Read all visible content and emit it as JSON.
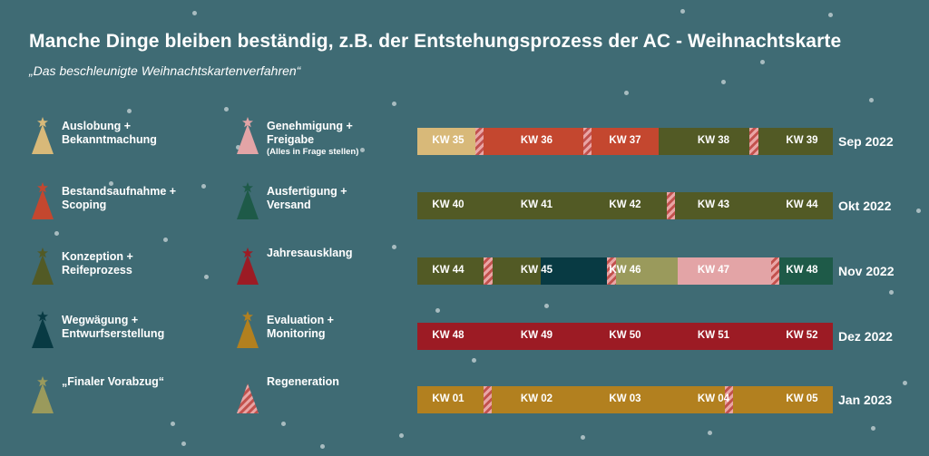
{
  "title": "Manche Dinge bleiben beständig, z.B. der Entstehungsprozess der AC - Weihnachtskarte",
  "subtitle": "„Das beschleunigte Weihnachtskartenverfahren“",
  "colors": {
    "background": "#3f6b74",
    "auslobung": "#d8b979",
    "bestandsaufnahme": "#c4472f",
    "konzeption": "#525a25",
    "wegwaegung": "#083a43",
    "finaler_vorabzug": "#9a9a5c",
    "genehmigung": "#e3a4a6",
    "ausfertigung": "#1e5a48",
    "jahresausklang": "#9c1b24",
    "evaluation": "#b2801f",
    "regeneration": "stripe"
  },
  "legend": [
    {
      "id": "auslobung",
      "icon": "tree-icon",
      "line1": "Auslobung +",
      "line2": "Bekanntmachung",
      "sub": ""
    },
    {
      "id": "bestandsaufnahme",
      "icon": "tree-icon",
      "line1": "Bestandsaufnahme +",
      "line2": "Scoping",
      "sub": ""
    },
    {
      "id": "konzeption",
      "icon": "tree-icon",
      "line1": "Konzeption +",
      "line2": "Reifeprozess",
      "sub": ""
    },
    {
      "id": "wegwaegung",
      "icon": "tree-icon",
      "line1": "Wegwägung +",
      "line2": "Entwurfserstellung",
      "sub": ""
    },
    {
      "id": "finaler_vorabzug",
      "icon": "tree-icon",
      "line1": "„Finaler Vorabzug“",
      "line2": "",
      "sub": ""
    },
    {
      "id": "genehmigung",
      "icon": "tree-icon",
      "line1": "Genehmigung +",
      "line2": "Freigabe",
      "sub": "(Alles in Frage stellen)"
    },
    {
      "id": "ausfertigung",
      "icon": "tree-icon",
      "line1": "Ausfertigung +",
      "line2": "Versand",
      "sub": ""
    },
    {
      "id": "jahresausklang",
      "icon": "tree-icon",
      "line1": "Jahresausklang",
      "line2": "",
      "sub": ""
    },
    {
      "id": "evaluation",
      "icon": "tree-icon",
      "line1": "Evaluation +",
      "line2": "Monitoring",
      "sub": ""
    },
    {
      "id": "regeneration",
      "icon": "striped-tree-icon",
      "line1": "Regeneration",
      "line2": "",
      "sub": ""
    }
  ],
  "timeline": [
    {
      "month": "Sep 2022",
      "weeks": [
        "KW 35",
        "KW 36",
        "KW 37",
        "KW 38",
        "KW 39"
      ],
      "segments": [
        {
          "phase": "auslobung",
          "span": 0.7
        },
        {
          "phase": "regeneration",
          "span": 0.1
        },
        {
          "phase": "bestandsaufnahme",
          "span": 1.2
        },
        {
          "phase": "regeneration",
          "span": 0.1
        },
        {
          "phase": "bestandsaufnahme",
          "span": 0.8
        },
        {
          "phase": "konzeption",
          "span": 1.1
        },
        {
          "phase": "regeneration",
          "span": 0.1
        },
        {
          "phase": "konzeption",
          "span": 0.9
        }
      ]
    },
    {
      "month": "Okt 2022",
      "weeks": [
        "KW 40",
        "KW 41",
        "KW 42",
        "KW 43",
        "KW 44"
      ],
      "segments": [
        {
          "phase": "konzeption",
          "span": 3.0
        },
        {
          "phase": "regeneration",
          "span": 0.1
        },
        {
          "phase": "konzeption",
          "span": 1.9
        }
      ]
    },
    {
      "month": "Nov 2022",
      "weeks": [
        "KW 44",
        "KW 45",
        "KW 46",
        "KW 47",
        "KW 48"
      ],
      "segments": [
        {
          "phase": "konzeption",
          "span": 0.75
        },
        {
          "phase": "regeneration",
          "span": 0.1
        },
        {
          "phase": "konzeption",
          "span": 0.55
        },
        {
          "phase": "wegwaegung",
          "span": 0.75
        },
        {
          "phase": "regeneration",
          "span": 0.1
        },
        {
          "phase": "finaler_vorabzug",
          "span": 0.7
        },
        {
          "phase": "genehmigung",
          "span": 1.05
        },
        {
          "phase": "regeneration",
          "span": 0.1
        },
        {
          "phase": "ausfertigung",
          "span": 0.6
        }
      ]
    },
    {
      "month": "Dez 2022",
      "weeks": [
        "KW 48",
        "KW 49",
        "KW 50",
        "KW 51",
        "KW 52"
      ],
      "segments": [
        {
          "phase": "jahresausklang",
          "span": 5.0
        }
      ]
    },
    {
      "month": "Jan 2023",
      "weeks": [
        "KW 01",
        "KW 02",
        "KW 03",
        "KW 04",
        "KW 05"
      ],
      "segments": [
        {
          "phase": "evaluation",
          "span": 0.8
        },
        {
          "phase": "regeneration",
          "span": 0.1
        },
        {
          "phase": "evaluation",
          "span": 2.8
        },
        {
          "phase": "regeneration",
          "span": 0.1
        },
        {
          "phase": "evaluation",
          "span": 1.2
        }
      ]
    }
  ]
}
